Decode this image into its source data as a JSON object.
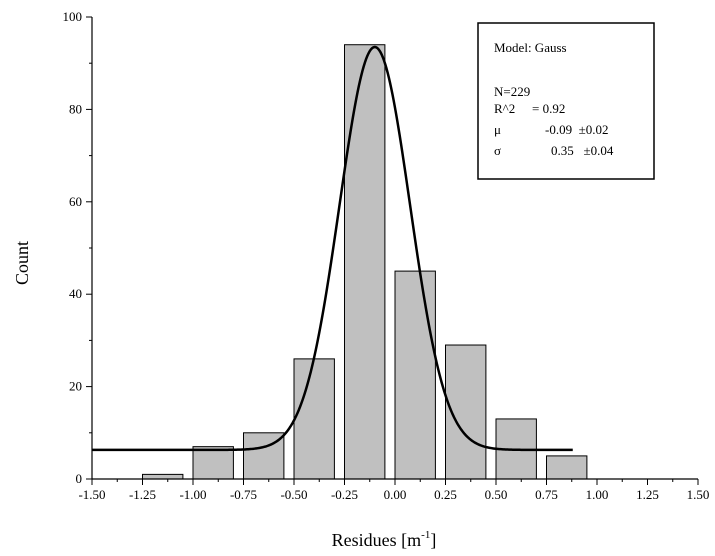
{
  "chart_data": {
    "type": "bar",
    "xlabel": "Residues [m",
    "xlabel_sup": "-1",
    "xlabel_tail": "]",
    "ylabel": "Count",
    "xlim": [
      -1.5,
      1.5
    ],
    "ylim": [
      0,
      100
    ],
    "xticks": [
      "-1.50",
      "-1.25",
      "-1.00",
      "-0.75",
      "-0.50",
      "-0.25",
      "0.00",
      "0.25",
      "0.50",
      "0.75",
      "1.00",
      "1.25",
      "1.50"
    ],
    "yticks": [
      "0",
      "20",
      "40",
      "60",
      "80",
      "100"
    ],
    "bin_width": 0.2,
    "bins": [
      {
        "center": -1.15,
        "value": 1
      },
      {
        "center": -0.9,
        "value": 7
      },
      {
        "center": -0.65,
        "value": 10
      },
      {
        "center": -0.4,
        "value": 26
      },
      {
        "center": -0.15,
        "value": 94
      },
      {
        "center": 0.1,
        "value": 45
      },
      {
        "center": 0.35,
        "value": 29
      },
      {
        "center": 0.6,
        "value": 13
      },
      {
        "center": 0.85,
        "value": 5
      }
    ],
    "bar_color": "#c0c0c0",
    "fit": {
      "model": "Gauss",
      "baseline": 6.3,
      "peak": 93.5,
      "center": -0.1,
      "sigma": 0.175,
      "x_range": [
        -1.5,
        0.88
      ]
    },
    "legend": {
      "position": "top-right",
      "title": "Model: Gauss",
      "lines": [
        [
          "N=229",
          ""
        ],
        [
          "R^2",
          "= 0.92"
        ],
        [
          "μ",
          "-0.09  ±0.02"
        ],
        [
          "σ",
          "0.35   ±0.04"
        ]
      ]
    }
  }
}
